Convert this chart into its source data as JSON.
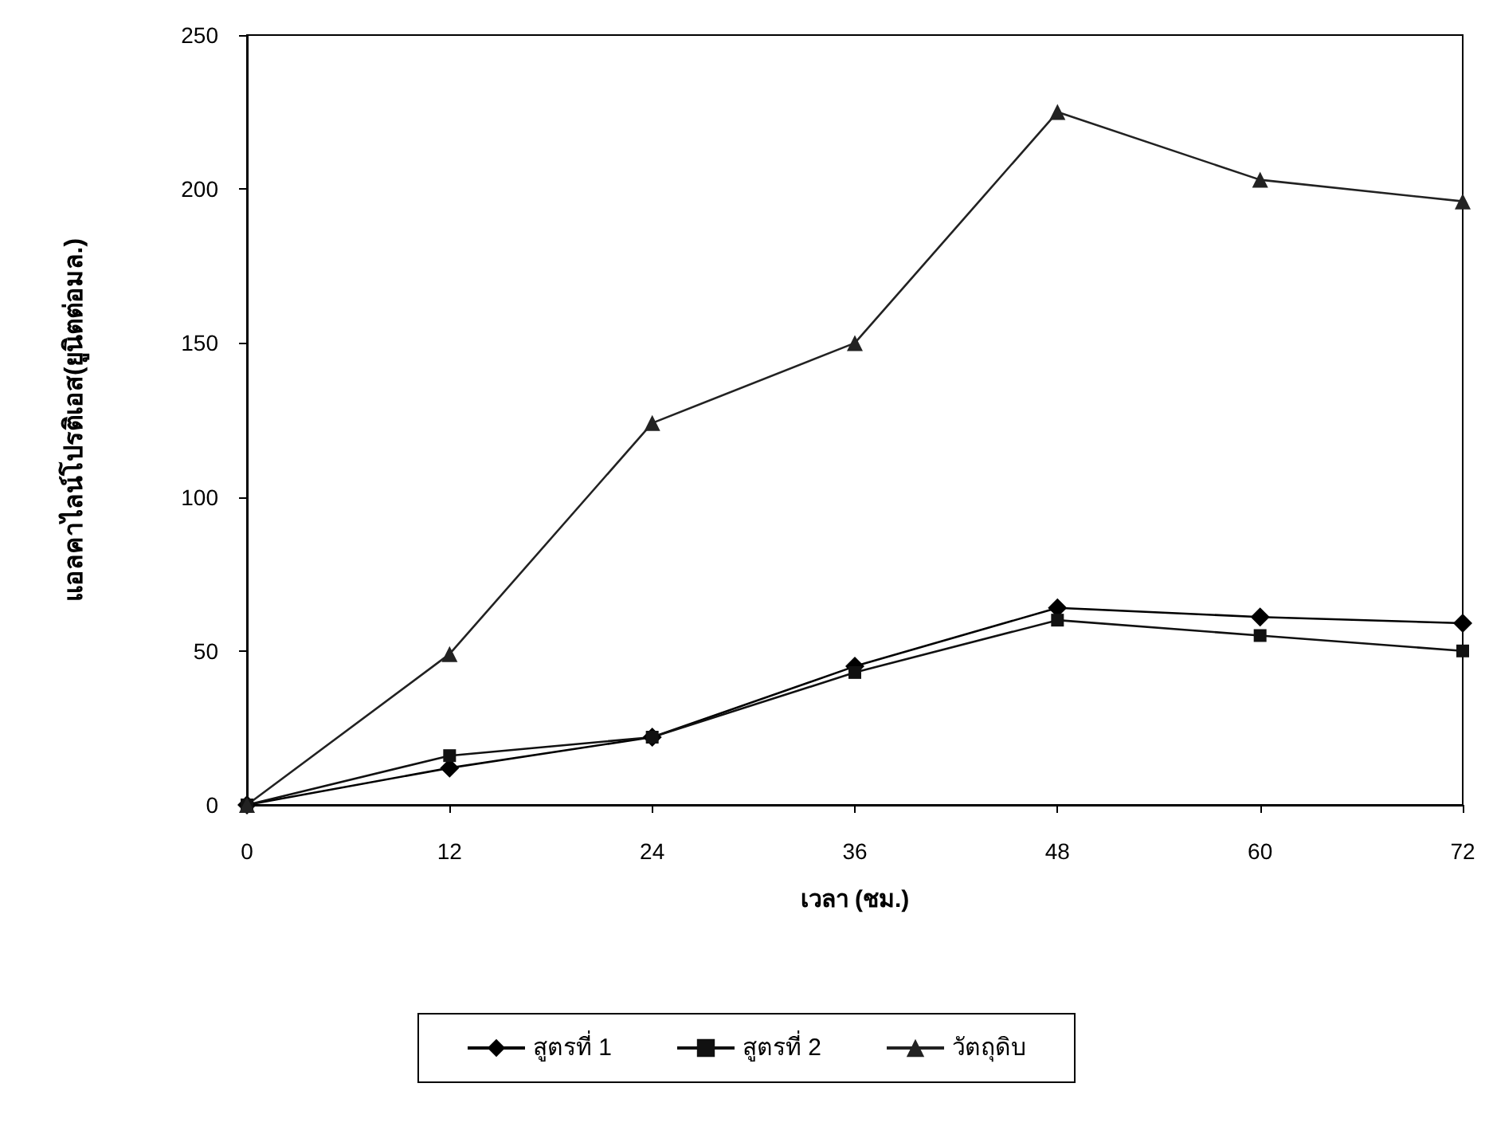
{
  "chart_data": {
    "type": "line",
    "xlabel": "เวลา (ชม.)",
    "ylabel": "แอลคาไลน์โปรติเอส(ยูนิตต่อมล.)",
    "x": [
      0,
      12,
      24,
      36,
      48,
      60,
      72
    ],
    "xlim": [
      0,
      72
    ],
    "xticks": [
      0,
      12,
      24,
      36,
      48,
      60,
      72
    ],
    "ylim": [
      0,
      250
    ],
    "yticks": [
      0,
      50,
      100,
      150,
      200,
      250
    ],
    "grid": false,
    "legend": "bottom",
    "line_style": "solid",
    "series": [
      {
        "name": "สูตรที่ 1",
        "color": "#000000",
        "marker": "diamond",
        "values": [
          0,
          12,
          22,
          45,
          64,
          61,
          59
        ]
      },
      {
        "name": "สูตรที่ 2",
        "color": "#111111",
        "marker": "square",
        "values": [
          0,
          16,
          22,
          43,
          60,
          55,
          50
        ]
      },
      {
        "name": "วัตถุดิบ",
        "color": "#222222",
        "marker": "triangle",
        "values": [
          0,
          49,
          124,
          150,
          225,
          203,
          196
        ]
      }
    ]
  }
}
